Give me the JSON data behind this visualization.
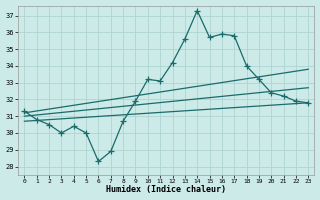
{
  "xlabel": "Humidex (Indice chaleur)",
  "bg_color": "#cceae8",
  "grid_color": "#aed4d2",
  "line_color": "#1a6b6b",
  "xlim": [
    -0.5,
    23.5
  ],
  "ylim": [
    27.5,
    37.6
  ],
  "yticks": [
    28,
    29,
    30,
    31,
    32,
    33,
    34,
    35,
    36,
    37
  ],
  "xticks": [
    0,
    1,
    2,
    3,
    4,
    5,
    6,
    7,
    8,
    9,
    10,
    11,
    12,
    13,
    14,
    15,
    16,
    17,
    18,
    19,
    20,
    21,
    22,
    23
  ],
  "series1_x": [
    0,
    1,
    2,
    3,
    4,
    5,
    6,
    7,
    8,
    9,
    10,
    11,
    12,
    13,
    14,
    15,
    16,
    17,
    18,
    19,
    20,
    21,
    22,
    23
  ],
  "series1_y": [
    31.3,
    30.8,
    30.5,
    30.0,
    30.4,
    30.0,
    28.3,
    28.9,
    30.7,
    31.9,
    33.2,
    33.1,
    34.2,
    35.6,
    37.3,
    35.7,
    35.9,
    35.8,
    34.0,
    33.2,
    32.4,
    32.2,
    31.9,
    31.8
  ],
  "series2_x": [
    0,
    23
  ],
  "series2_y": [
    31.2,
    33.8
  ],
  "series3_x": [
    0,
    23
  ],
  "series3_y": [
    31.0,
    32.7
  ],
  "series4_x": [
    0,
    23
  ],
  "series4_y": [
    30.7,
    31.8
  ]
}
